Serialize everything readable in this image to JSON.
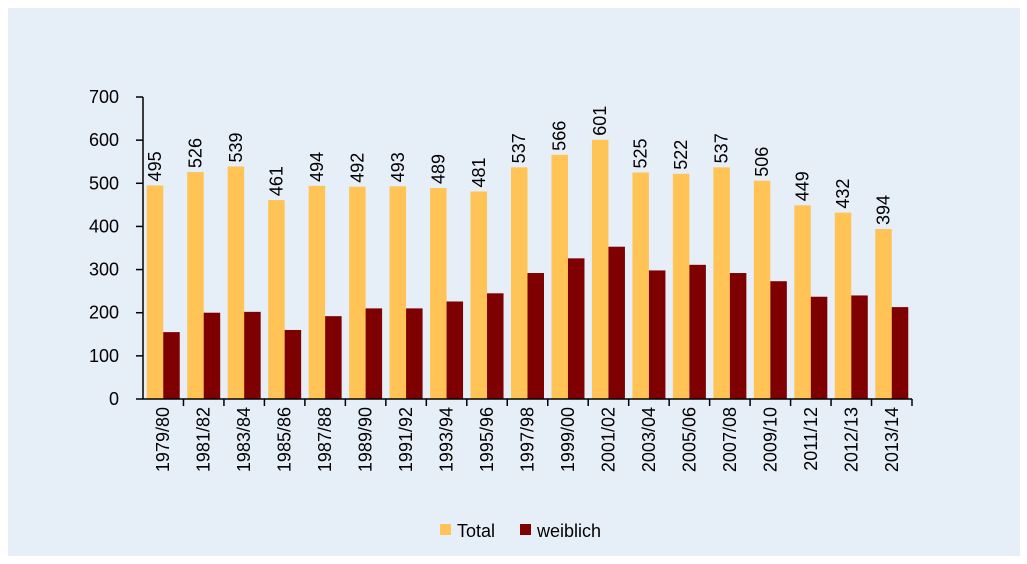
{
  "chart_data": {
    "type": "bar",
    "categories": [
      "1979/80",
      "1981/82",
      "1983/84",
      "1985/86",
      "1987/88",
      "1989/90",
      "1991/92",
      "1993/94",
      "1995/96",
      "1997/98",
      "1999/00",
      "2001/02",
      "2003/04",
      "2005/06",
      "2007/08",
      "2009/10",
      "2011/12",
      "2012/13",
      "2013/14"
    ],
    "series": [
      {
        "name": "Total",
        "color": "#ffc455",
        "values": [
          495,
          526,
          539,
          461,
          494,
          492,
          493,
          489,
          481,
          537,
          566,
          601,
          525,
          522,
          537,
          506,
          449,
          432,
          394
        ],
        "show_labels": true
      },
      {
        "name": "weiblich",
        "color": "#7f0000",
        "values": [
          155,
          200,
          202,
          160,
          192,
          210,
          210,
          226,
          245,
          292,
          326,
          353,
          298,
          311,
          292,
          273,
          237,
          240,
          213
        ],
        "show_labels": false
      }
    ],
    "ylim": [
      0,
      700
    ],
    "yticks": [
      0,
      100,
      200,
      300,
      400,
      500,
      600,
      700
    ],
    "grid": false,
    "legend": "bottom"
  }
}
